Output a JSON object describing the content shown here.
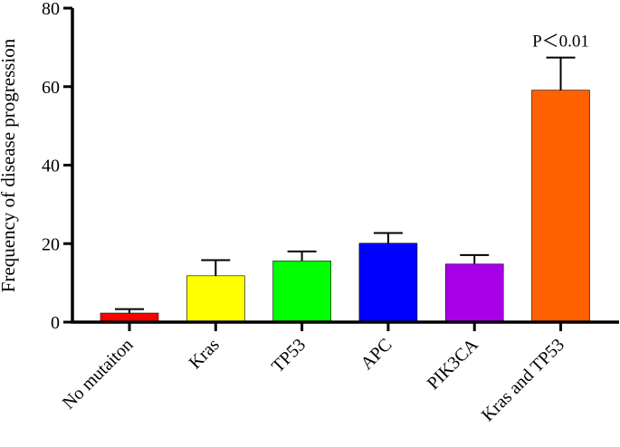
{
  "chart_data": {
    "type": "bar",
    "title": "",
    "xlabel": "",
    "ylabel": "Frequency of disease progression",
    "ylim": [
      0,
      80
    ],
    "yticks": [
      0,
      20,
      40,
      60,
      80
    ],
    "grid": false,
    "legend": "none",
    "categories": [
      "No mutaiton",
      "Kras",
      "TP53",
      "APC",
      "PIK3CA",
      "Kras and TP53"
    ],
    "values": [
      2.3,
      11.8,
      15.6,
      20.1,
      14.8,
      59.1
    ],
    "error_upper": [
      1.0,
      4.0,
      2.4,
      2.6,
      2.3,
      8.3
    ],
    "colors": [
      "#ff0000",
      "#ffff00",
      "#00ff00",
      "#0000ff",
      "#a700e8",
      "#ff6100"
    ],
    "annotations": [
      {
        "category": "Kras and TP53",
        "text": "P＜0.01"
      }
    ]
  }
}
